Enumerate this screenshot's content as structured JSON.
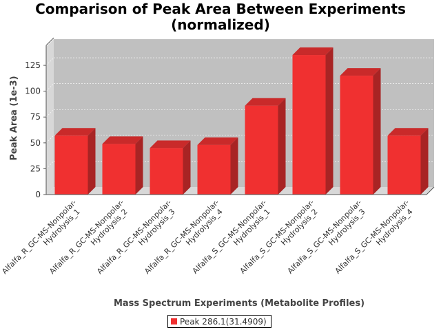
{
  "chart_data": {
    "type": "bar",
    "title_lines": [
      "Comparison of Peak Area Between Experiments",
      "(normalized)"
    ],
    "xlabel": "Mass Spectrum Experiments (Metabolite Profiles)",
    "ylabel": "Peak Area (1e-3)",
    "categories": [
      [
        "Alfalfa_R_GC-MS-Nonpolar-",
        "Hydrolysis_1"
      ],
      [
        "Alfalfa_R_GC-MS-Nonpolar-",
        "Hydrolysis_2"
      ],
      [
        "Alfalfa_R_GC-MS-Nonpolar-",
        "Hydrolysis_3"
      ],
      [
        "Alfalfa_R_GC-MS-Nonpolar-",
        "Hydrolysis_4"
      ],
      [
        "Alfalfa_S_GC-MS-Nonpolar-",
        "Hydrolysis_1"
      ],
      [
        "Alfalfa_S_GC-MS-Nonpolar-",
        "Hydrolysis_2"
      ],
      [
        "Alfalfa_S_GC-MS-Nonpolar-",
        "Hydrolysis_3"
      ],
      [
        "Alfalfa_S_GC-MS-Nonpolar-",
        "Hydrolysis_4"
      ]
    ],
    "series": [
      {
        "name": "Peak 286.1(31.4909)",
        "values": [
          57,
          49,
          45,
          48,
          86,
          135,
          115,
          57
        ]
      }
    ],
    "ylim": [
      0,
      143
    ],
    "yticks": [
      0,
      25,
      50,
      75,
      100,
      125
    ],
    "grid": true,
    "legend_position": "bottom",
    "colors": {
      "bar": "#f03030",
      "bar_top": "#c92a2a",
      "bar_side": "#a82424",
      "plot_bg": "#c0c0c0",
      "wall": "#d8d8d8"
    }
  }
}
